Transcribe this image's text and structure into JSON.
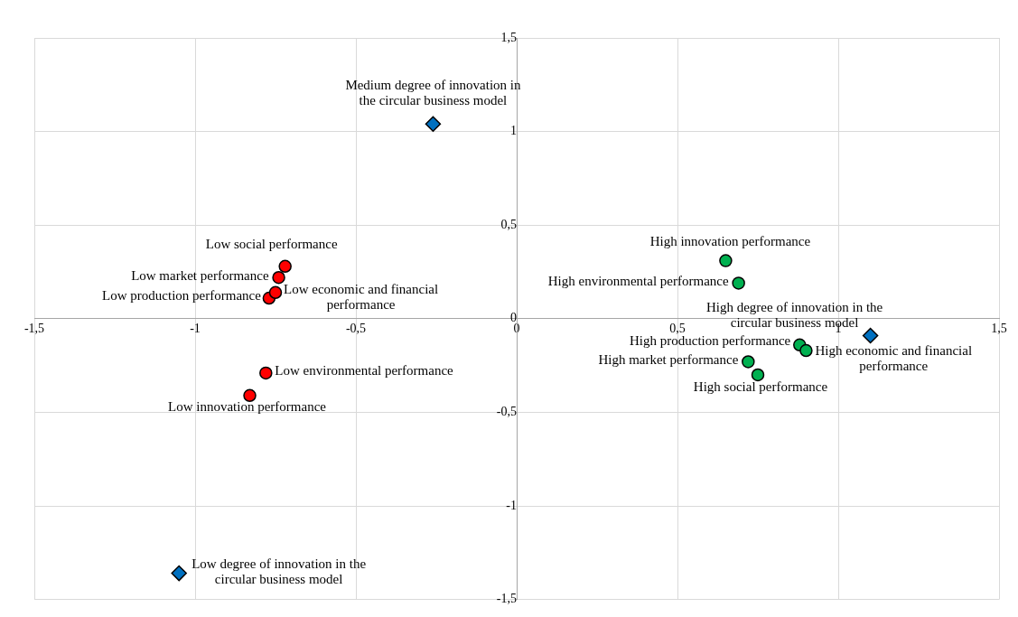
{
  "chart_data": {
    "type": "scatter",
    "series": [
      {
        "color": "#0070c0",
        "marker": "diamond",
        "x": [
          -0.26,
          -1.05,
          1.1
        ],
        "values": [
          1.04,
          -1.36,
          -0.09
        ]
      },
      {
        "color": "#ff0000",
        "marker": "circle",
        "x": [
          -0.72,
          -0.74,
          -0.77,
          -0.75,
          -0.78,
          -0.83
        ],
        "values": [
          0.28,
          0.22,
          0.11,
          0.14,
          -0.29,
          -0.41
        ]
      },
      {
        "color": "#00b050",
        "marker": "circle",
        "x": [
          0.65,
          0.69,
          0.88,
          0.9,
          0.72,
          0.75
        ],
        "values": [
          0.31,
          0.19,
          -0.14,
          -0.17,
          -0.23,
          -0.3
        ]
      }
    ],
    "annotations": [
      {
        "text": "Medium degree of innovation in the circular business model",
        "x": -0.26,
        "y": 1.04
      },
      {
        "text": "Low degree of innovation in the circular business model",
        "x": -1.05,
        "y": -1.36
      },
      {
        "text": "High degree of innovation in the circular business model",
        "x": 1.1,
        "y": -0.09
      },
      {
        "text": "Low social performance",
        "x": -0.72,
        "y": 0.28
      },
      {
        "text": "Low market performance",
        "x": -0.74,
        "y": 0.22
      },
      {
        "text": "Low production performance",
        "x": -0.77,
        "y": 0.11
      },
      {
        "text": "Low economic and financial performance",
        "x": -0.75,
        "y": 0.14
      },
      {
        "text": "Low environmental performance",
        "x": -0.78,
        "y": -0.29
      },
      {
        "text": "Low innovation performance",
        "x": -0.83,
        "y": -0.41
      },
      {
        "text": "High innovation performance",
        "x": 0.65,
        "y": 0.31
      },
      {
        "text": "High environmental performance",
        "x": 0.69,
        "y": 0.19
      },
      {
        "text": "High production performance",
        "x": 0.88,
        "y": -0.14
      },
      {
        "text": "High economic and financial performance",
        "x": 0.9,
        "y": -0.17
      },
      {
        "text": "High market performance",
        "x": 0.72,
        "y": -0.23
      },
      {
        "text": "High social performance",
        "x": 0.75,
        "y": -0.3
      }
    ],
    "xlim": [
      -1.5,
      1.5
    ],
    "ylim": [
      -1.5,
      1.5
    ],
    "xticks": [
      {
        "value": -1.5,
        "label": "-1,5"
      },
      -1,
      {
        "value": -0.5,
        "label": "-0,5"
      },
      0,
      {
        "value": 0.5,
        "label": "0,5"
      },
      1,
      {
        "value": 1.5,
        "label": "1,5"
      }
    ],
    "yticks": [
      {
        "value": -1.5,
        "label": "-1,5"
      },
      -1,
      {
        "value": -0.5,
        "label": "-0,5"
      },
      0,
      {
        "value": 0.5,
        "label": "0,5"
      },
      1,
      {
        "value": 1.5,
        "label": "1,5"
      }
    ],
    "grid": true,
    "legend": false
  }
}
